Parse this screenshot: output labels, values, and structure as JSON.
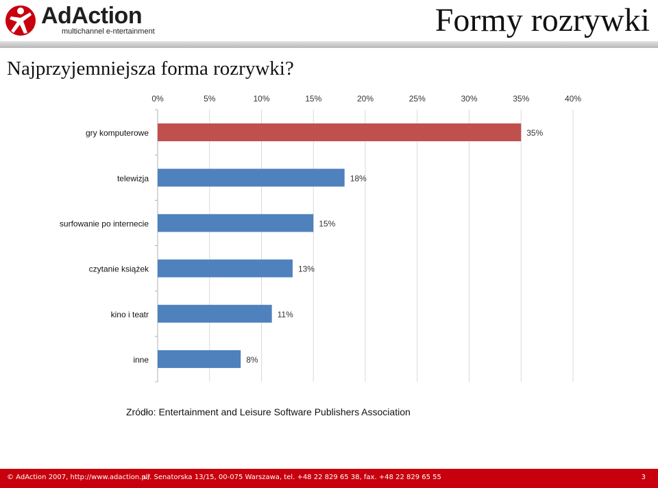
{
  "header": {
    "logo_text": "AdAction",
    "logo_tagline": "multichannel e-ntertainment",
    "title": "Formy rozrywki"
  },
  "subtitle": "Najprzyjemniejsza forma rozrywki?",
  "source": "Zródło: Entertainment and Leisure Software Publishers Association",
  "footer": {
    "copyright": "© AdAction 2007, http://www.adaction.pl/",
    "address": "ul. Senatorska 13/15, 00-075 Warszawa, tel. +48 22 829 65 38, fax. +48 22 829 65 55",
    "page_number": "3"
  },
  "colors": {
    "highlight_bar": "#c0504d",
    "bar": "#4f81bd",
    "footer_bg": "#c8000d"
  },
  "chart_data": {
    "type": "bar",
    "orientation": "horizontal",
    "categories": [
      "gry komputerowe",
      "telewizja",
      "surfowanie po internecie",
      "czytanie książek",
      "kino i teatr",
      "inne"
    ],
    "values": [
      35,
      18,
      15,
      13,
      11,
      8
    ],
    "data_labels": [
      "35%",
      "18%",
      "15%",
      "13%",
      "11%",
      "8%"
    ],
    "highlight_index": 0,
    "xlim": [
      0,
      40
    ],
    "x_ticks": [
      "0%",
      "5%",
      "10%",
      "15%",
      "20%",
      "25%",
      "30%",
      "35%",
      "40%"
    ],
    "x_axis_position": "top",
    "grid": true
  }
}
